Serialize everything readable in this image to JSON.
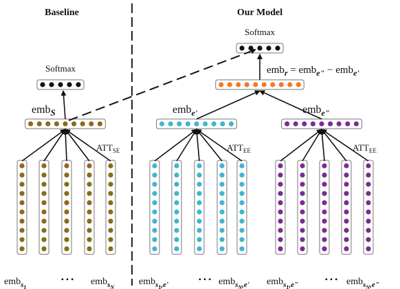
{
  "headers": {
    "left": "Baseline",
    "right": "Our Model"
  },
  "labels": {
    "softmax_left": "Softmax",
    "softmax_right": "Softmax",
    "emb": "emb",
    "att": "ATT",
    "att_se_sub": "SE",
    "att_ee_sub": "EE",
    "sub_s": "S",
    "sub_e1": "e'",
    "sub_e2": "e\"",
    "sub_r": "r",
    "equals": " = ",
    "minus": " − ",
    "ellipsis": "• • •",
    "sub_s1": "s",
    "sub_1": "1",
    "sub_sN": "s",
    "sub_N": "N",
    "sub_s1e1": "s",
    "sub_1_e1": "1",
    "comma_e1": ",e'",
    "sub_sNe1": "s",
    "sub_N_e1": "N",
    "comma_e1b": ",e'",
    "sub_s1e2": "s",
    "sub_1_e2": "1",
    "comma_e2": ",e\"",
    "sub_sNe2": "s",
    "sub_N_e2": "N",
    "comma_e2b": ",e\""
  },
  "colors": {
    "baseline": "#8b6a1a",
    "cyan": "#3fb6cf",
    "purple": "#7b2b93",
    "orange": "#f07a26",
    "softmax": "#111111"
  }
}
